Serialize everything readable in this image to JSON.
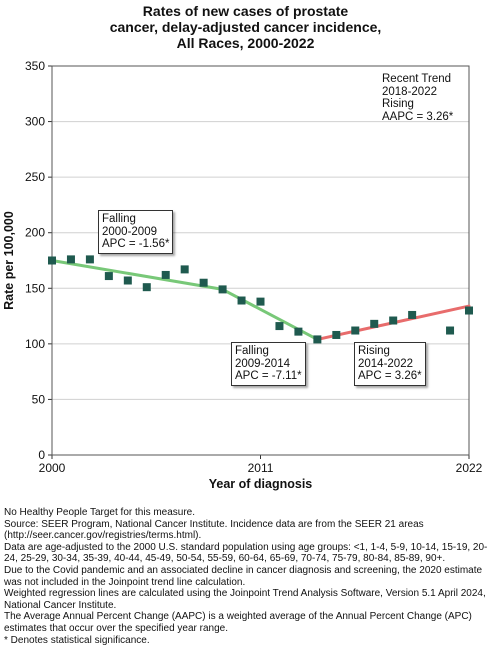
{
  "chart_title": [
    "Rates of new cases of prostate",
    "cancer, delay-adjusted cancer incidence,",
    "All Races,  2000-2022"
  ],
  "chart_data": {
    "type": "scatter",
    "xlabel": "Year of diagnosis",
    "ylabel": "Rate per 100,000",
    "xlim": [
      2000,
      2022
    ],
    "ylim": [
      0,
      350
    ],
    "x_ticks": [
      2000,
      2011,
      2022
    ],
    "y_ticks": [
      0,
      50,
      100,
      150,
      200,
      250,
      300,
      350
    ],
    "grid": true,
    "observed": {
      "x": [
        2000,
        2001,
        2002,
        2003,
        2004,
        2005,
        2006,
        2007,
        2008,
        2009,
        2010,
        2011,
        2012,
        2013,
        2014,
        2015,
        2016,
        2017,
        2018,
        2019,
        2021,
        2022
      ],
      "y": [
        175,
        176,
        176,
        161,
        157,
        151,
        162,
        167,
        155,
        149,
        139,
        138,
        116,
        111,
        104,
        108,
        112,
        118,
        121,
        126,
        112,
        130
      ],
      "color": "#1f5a4f"
    },
    "trend_segments": [
      {
        "x": [
          2000,
          2009
        ],
        "y": [
          175,
          149
        ],
        "color": "#78c878"
      },
      {
        "x": [
          2009,
          2014
        ],
        "y": [
          149,
          104
        ],
        "color": "#78c878"
      },
      {
        "x": [
          2014,
          2022
        ],
        "y": [
          104,
          134
        ],
        "color": "#e86c6c"
      }
    ],
    "annotations": [
      {
        "lines": [
          "Falling",
          "2000-2009",
          "APC = -1.56*"
        ]
      },
      {
        "lines": [
          "Falling",
          "2009-2014",
          "APC = -7.11*"
        ]
      },
      {
        "lines": [
          "Rising",
          "2014-2022",
          "APC =  3.26*"
        ]
      }
    ],
    "recent_trend": [
      "Recent Trend",
      "2018-2022",
      "Rising",
      "AAPC =  3.26*"
    ]
  },
  "footnotes": [
    "No Healthy People Target for this measure.",
    "Source: SEER Program, National Cancer Institute. Incidence data are from the SEER 21 areas (http://seer.cancer.gov/registries/terms.html).",
    "Data are age-adjusted to the 2000 U.S. standard population using age groups: <1, 1-4, 5-9, 10-14, 15-19, 20-24, 25-29, 30-34, 35-39, 40-44, 45-49, 50-54, 55-59, 60-64, 65-69, 70-74, 75-79, 80-84, 85-89, 90+.",
    "Due to the Covid pandemic and an associated decline in cancer diagnosis and screening, the 2020 estimate was not included in the Joinpoint trend line calculation.",
    "Weighted regression lines are calculated using the Joinpoint Trend Analysis Software, Version 5.1 April 2024, National Cancer Institute.",
    "The Average Annual Percent Change (AAPC) is a weighted average of the Annual Percent Change (APC) estimates that occur over the specified year range.",
    "* Denotes statistical significance."
  ]
}
